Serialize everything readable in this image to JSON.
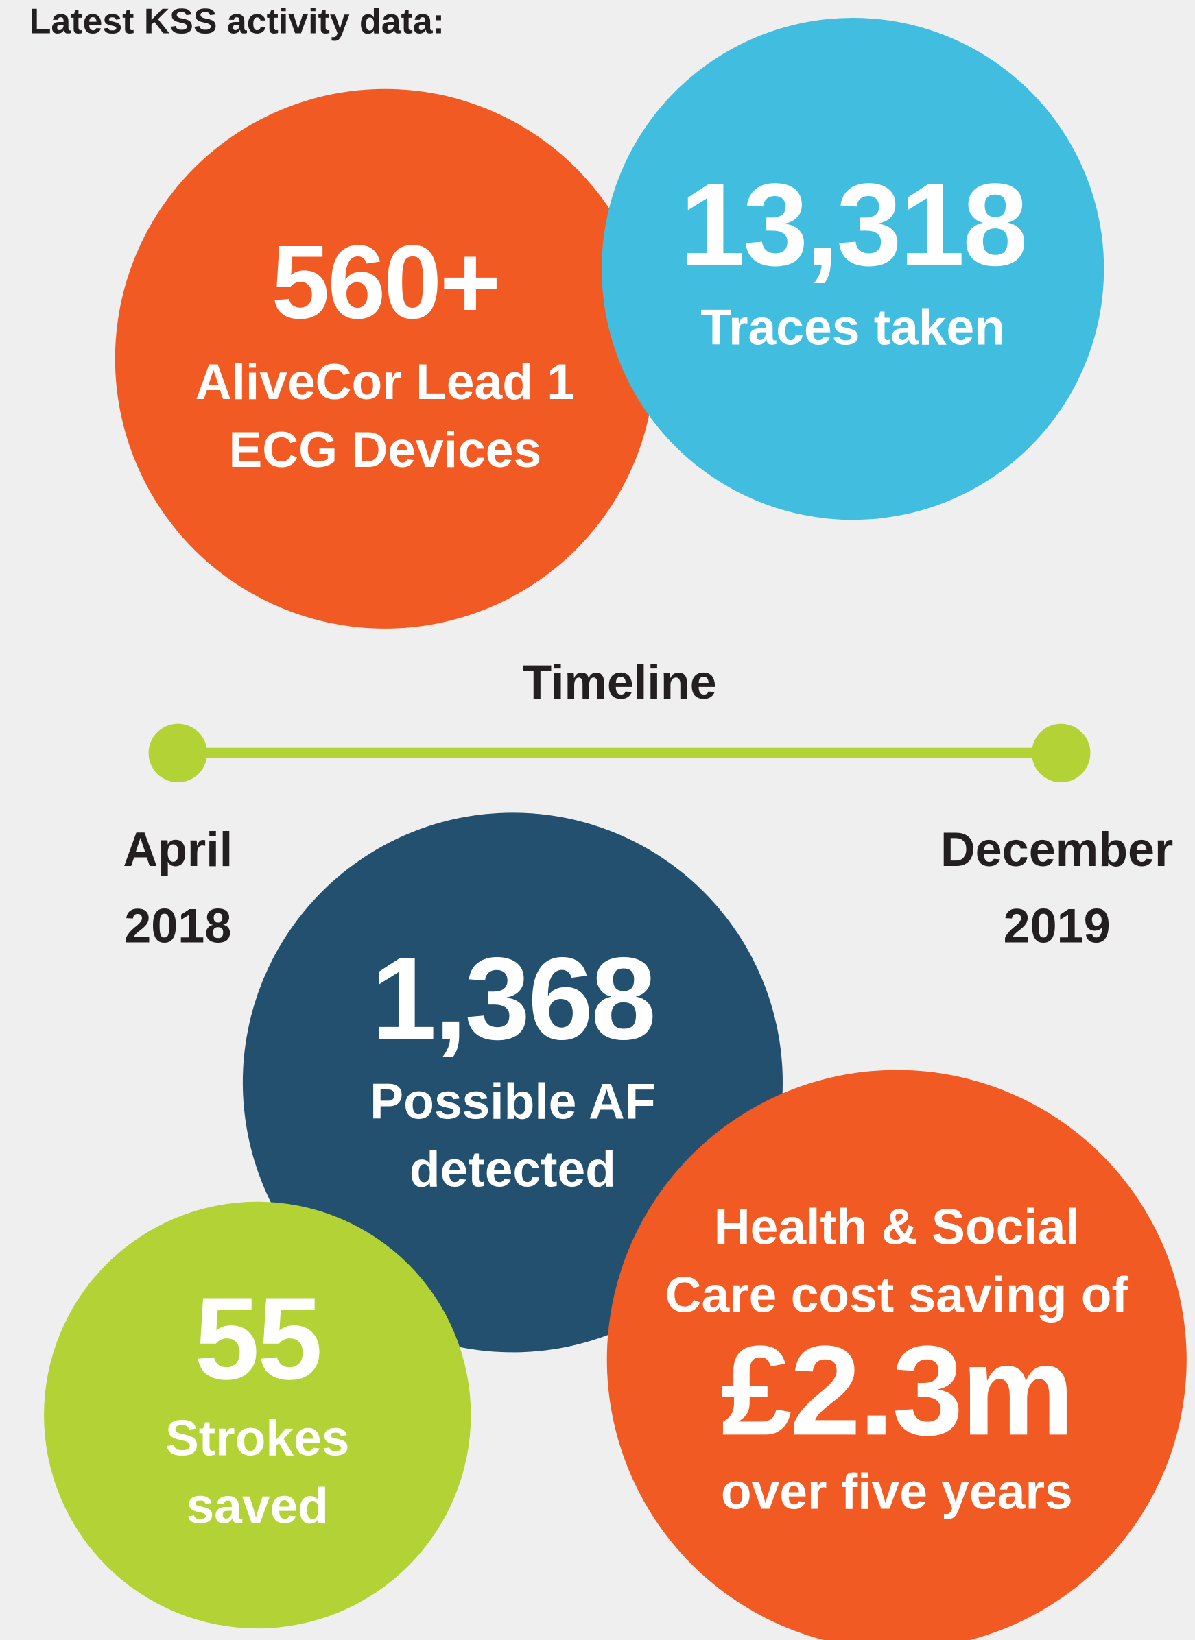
{
  "title": "Latest KSS activity data:",
  "stats": [
    {
      "value": "560+",
      "label": [
        "AliveCor Lead 1",
        "ECG Devices"
      ]
    },
    {
      "value": "13,318",
      "label": [
        "Traces taken"
      ]
    },
    {
      "value": "1,368",
      "label": [
        "Possible AF",
        "detected"
      ]
    },
    {
      "value": "55",
      "label": [
        "Strokes",
        "saved"
      ]
    },
    {
      "intro": [
        "Health & Social",
        "Care cost saving of"
      ],
      "value": "£2.3m",
      "label": [
        "over five years"
      ]
    }
  ],
  "timeline": {
    "title": "Timeline",
    "start": [
      "April",
      "2018"
    ],
    "end": [
      "December",
      "2019"
    ]
  }
}
